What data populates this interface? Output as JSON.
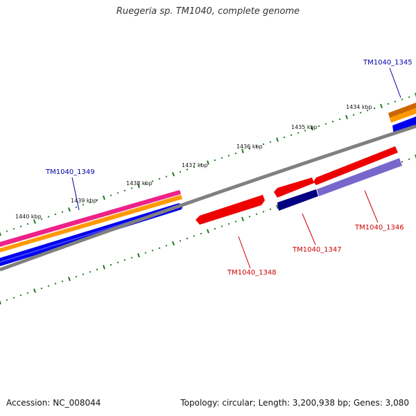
{
  "title": "Ruegeria sp. TM1040, complete genome",
  "footer": {
    "accession": "Accession: NC_008044",
    "summary": "Topology: circular; Length: 3,200,938 bp; Genes: 3,080"
  },
  "kbp_labels": [
    "1440 kbp",
    "1439 kbp",
    "1438 kbp",
    "1437 kbp",
    "1436 kbp",
    "1435 kbp",
    "1434 kbp"
  ],
  "genes": [
    {
      "id": "TM1040_1345",
      "strand": "forward",
      "color": "#0000aa"
    },
    {
      "id": "TM1040_1349",
      "strand": "forward",
      "color": "#0000aa"
    },
    {
      "id": "TM1040_1346",
      "strand": "reverse",
      "color": "#cc0000"
    },
    {
      "id": "TM1040_1347",
      "strand": "reverse",
      "color": "#cc0000"
    },
    {
      "id": "TM1040_1348",
      "strand": "reverse",
      "color": "#cc0000"
    }
  ],
  "colors": {
    "backbone": "#808080",
    "ticks": "#1a7a1a",
    "forward_gene": "#0000ee",
    "reverse_gene": "#ee0000",
    "orange_track": "#ff9900",
    "pink_track": "#ee2288",
    "dark_blue": "#000080",
    "light_purple": "#7766cc"
  }
}
